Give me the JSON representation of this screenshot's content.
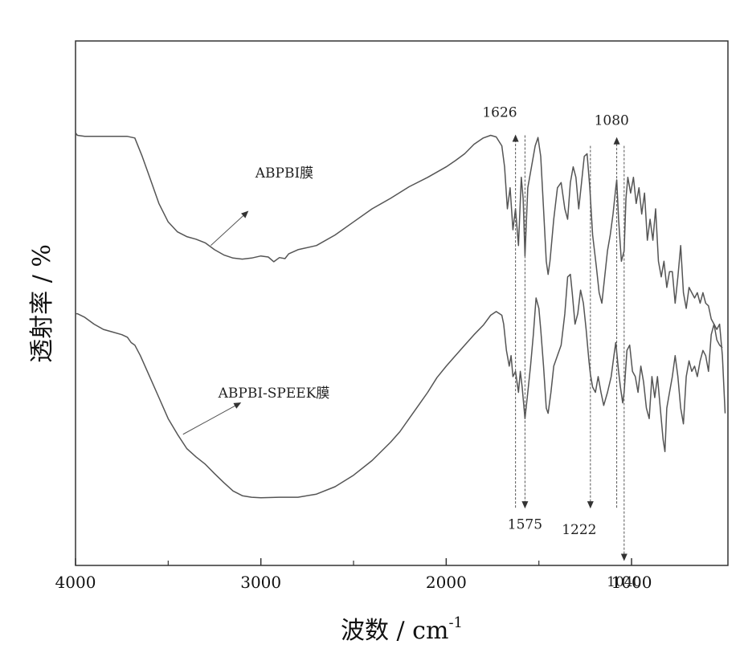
{
  "chart_data": {
    "type": "line",
    "xlabel": "波数 / cm",
    "xlabel_sup": "-1",
    "ylabel": "透射率 / %",
    "xlim": [
      4000,
      480
    ],
    "x_reversed": true,
    "ylim": [
      0,
      100
    ],
    "y_ticks_shown": false,
    "grid": false,
    "x_ticks": [
      {
        "value": 4000,
        "label": "4000"
      },
      {
        "value": 3000,
        "label": "3000"
      },
      {
        "value": 2000,
        "label": "2000"
      },
      {
        "value": 1000,
        "label": "1000"
      }
    ],
    "x_minor_ticks": [
      3500,
      2500,
      1500
    ],
    "series": [
      {
        "name": "ABPBI膜",
        "color": "#555555",
        "points": [
          [
            4000,
            82.5
          ],
          [
            3990,
            82
          ],
          [
            3950,
            81.8
          ],
          [
            3900,
            81.8
          ],
          [
            3800,
            81.8
          ],
          [
            3720,
            81.8
          ],
          [
            3680,
            81.5
          ],
          [
            3640,
            78
          ],
          [
            3600,
            74
          ],
          [
            3550,
            69
          ],
          [
            3500,
            65.5
          ],
          [
            3450,
            63.6
          ],
          [
            3400,
            62.7
          ],
          [
            3350,
            62.2
          ],
          [
            3300,
            61.5
          ],
          [
            3250,
            60.2
          ],
          [
            3200,
            59.2
          ],
          [
            3150,
            58.6
          ],
          [
            3100,
            58.4
          ],
          [
            3050,
            58.6
          ],
          [
            3000,
            59
          ],
          [
            2960,
            58.8
          ],
          [
            2930,
            57.9
          ],
          [
            2900,
            58.7
          ],
          [
            2870,
            58.5
          ],
          [
            2850,
            59.4
          ],
          [
            2800,
            60.2
          ],
          [
            2700,
            61
          ],
          [
            2600,
            63
          ],
          [
            2500,
            65.5
          ],
          [
            2400,
            68
          ],
          [
            2300,
            70
          ],
          [
            2200,
            72.2
          ],
          [
            2100,
            74
          ],
          [
            2000,
            76
          ],
          [
            1950,
            77.2
          ],
          [
            1900,
            78.5
          ],
          [
            1850,
            80.3
          ],
          [
            1800,
            81.5
          ],
          [
            1760,
            82
          ],
          [
            1730,
            81.7
          ],
          [
            1700,
            80
          ],
          [
            1685,
            76
          ],
          [
            1670,
            68
          ],
          [
            1655,
            72
          ],
          [
            1640,
            64
          ],
          [
            1626,
            68
          ],
          [
            1610,
            61
          ],
          [
            1595,
            74
          ],
          [
            1585,
            70
          ],
          [
            1575,
            59
          ],
          [
            1560,
            72
          ],
          [
            1540,
            76
          ],
          [
            1520,
            80
          ],
          [
            1505,
            81.6
          ],
          [
            1490,
            78
          ],
          [
            1475,
            68
          ],
          [
            1460,
            58
          ],
          [
            1450,
            55.5
          ],
          [
            1440,
            58
          ],
          [
            1420,
            66
          ],
          [
            1400,
            72
          ],
          [
            1380,
            73
          ],
          [
            1360,
            68
          ],
          [
            1345,
            66
          ],
          [
            1330,
            73
          ],
          [
            1315,
            76
          ],
          [
            1300,
            74
          ],
          [
            1285,
            68
          ],
          [
            1270,
            73
          ],
          [
            1255,
            78
          ],
          [
            1240,
            78.5
          ],
          [
            1225,
            72
          ],
          [
            1210,
            63
          ],
          [
            1190,
            57
          ],
          [
            1175,
            52
          ],
          [
            1160,
            50
          ],
          [
            1145,
            55
          ],
          [
            1130,
            60
          ],
          [
            1115,
            63
          ],
          [
            1100,
            67
          ],
          [
            1085,
            72
          ],
          [
            1080,
            73.5
          ],
          [
            1070,
            66
          ],
          [
            1055,
            58
          ],
          [
            1040,
            60
          ],
          [
            1030,
            70
          ],
          [
            1020,
            74
          ],
          [
            1005,
            71
          ],
          [
            990,
            74
          ],
          [
            975,
            69
          ],
          [
            960,
            72
          ],
          [
            945,
            67
          ],
          [
            930,
            71
          ],
          [
            915,
            62
          ],
          [
            900,
            66
          ],
          [
            885,
            62
          ],
          [
            870,
            68
          ],
          [
            855,
            58
          ],
          [
            840,
            55
          ],
          [
            825,
            58
          ],
          [
            810,
            53
          ],
          [
            795,
            56
          ],
          [
            780,
            56
          ],
          [
            765,
            50
          ],
          [
            750,
            55
          ],
          [
            735,
            61
          ],
          [
            720,
            52
          ],
          [
            705,
            49
          ],
          [
            690,
            53
          ],
          [
            675,
            52
          ],
          [
            660,
            51
          ],
          [
            645,
            52
          ],
          [
            630,
            50
          ],
          [
            615,
            52
          ],
          [
            600,
            50
          ],
          [
            585,
            49.5
          ],
          [
            570,
            47
          ],
          [
            555,
            46
          ],
          [
            540,
            43
          ],
          [
            525,
            42
          ],
          [
            510,
            41.5
          ]
        ]
      },
      {
        "name": "ABPBI-SPEEK膜",
        "color": "#555555",
        "points": [
          [
            4000,
            48
          ],
          [
            3990,
            48
          ],
          [
            3950,
            47.3
          ],
          [
            3900,
            46
          ],
          [
            3850,
            45
          ],
          [
            3800,
            44.5
          ],
          [
            3750,
            44
          ],
          [
            3720,
            43.5
          ],
          [
            3700,
            42.5
          ],
          [
            3680,
            42
          ],
          [
            3650,
            40
          ],
          [
            3600,
            36
          ],
          [
            3550,
            32
          ],
          [
            3500,
            28
          ],
          [
            3450,
            25
          ],
          [
            3400,
            22.3
          ],
          [
            3350,
            20.7
          ],
          [
            3300,
            19.3
          ],
          [
            3250,
            17.5
          ],
          [
            3200,
            15.8
          ],
          [
            3150,
            14.2
          ],
          [
            3100,
            13.3
          ],
          [
            3050,
            13
          ],
          [
            3000,
            12.9
          ],
          [
            2900,
            13
          ],
          [
            2800,
            13
          ],
          [
            2700,
            13.6
          ],
          [
            2600,
            15
          ],
          [
            2500,
            17.2
          ],
          [
            2400,
            20
          ],
          [
            2300,
            23.5
          ],
          [
            2250,
            25.5
          ],
          [
            2200,
            28
          ],
          [
            2150,
            30.5
          ],
          [
            2100,
            33
          ],
          [
            2050,
            35.8
          ],
          [
            2000,
            38
          ],
          [
            1950,
            40
          ],
          [
            1900,
            42
          ],
          [
            1850,
            44
          ],
          [
            1800,
            45.8
          ],
          [
            1760,
            47.7
          ],
          [
            1730,
            48.4
          ],
          [
            1700,
            47.7
          ],
          [
            1690,
            46
          ],
          [
            1675,
            41
          ],
          [
            1660,
            38
          ],
          [
            1650,
            40
          ],
          [
            1640,
            36
          ],
          [
            1626,
            37
          ],
          [
            1610,
            33
          ],
          [
            1600,
            37
          ],
          [
            1590,
            34
          ],
          [
            1575,
            28
          ],
          [
            1560,
            33
          ],
          [
            1545,
            38
          ],
          [
            1530,
            44
          ],
          [
            1515,
            51
          ],
          [
            1500,
            49
          ],
          [
            1490,
            45
          ],
          [
            1475,
            38
          ],
          [
            1460,
            30
          ],
          [
            1450,
            29
          ],
          [
            1435,
            33
          ],
          [
            1420,
            38
          ],
          [
            1400,
            40
          ],
          [
            1380,
            42
          ],
          [
            1360,
            48
          ],
          [
            1345,
            55
          ],
          [
            1330,
            55.5
          ],
          [
            1320,
            52
          ],
          [
            1305,
            46
          ],
          [
            1290,
            48
          ],
          [
            1275,
            52.5
          ],
          [
            1260,
            50
          ],
          [
            1245,
            45
          ],
          [
            1230,
            39
          ],
          [
            1222,
            36.5
          ],
          [
            1210,
            34
          ],
          [
            1195,
            33
          ],
          [
            1180,
            36
          ],
          [
            1165,
            33
          ],
          [
            1150,
            30.5
          ],
          [
            1130,
            33
          ],
          [
            1110,
            36
          ],
          [
            1095,
            40
          ],
          [
            1085,
            42.5
          ],
          [
            1070,
            37
          ],
          [
            1060,
            34
          ],
          [
            1048,
            31
          ],
          [
            1040,
            33
          ],
          [
            1025,
            41
          ],
          [
            1010,
            42
          ],
          [
            995,
            37
          ],
          [
            980,
            36
          ],
          [
            965,
            33
          ],
          [
            950,
            38
          ],
          [
            935,
            35
          ],
          [
            920,
            30
          ],
          [
            905,
            28
          ],
          [
            890,
            36
          ],
          [
            875,
            32
          ],
          [
            860,
            36
          ],
          [
            845,
            30
          ],
          [
            830,
            24
          ],
          [
            820,
            21.7
          ],
          [
            810,
            30
          ],
          [
            795,
            33
          ],
          [
            780,
            36
          ],
          [
            765,
            40
          ],
          [
            750,
            36
          ],
          [
            735,
            30
          ],
          [
            720,
            27
          ],
          [
            705,
            36
          ],
          [
            690,
            39
          ],
          [
            675,
            37
          ],
          [
            660,
            38
          ],
          [
            645,
            36
          ],
          [
            630,
            39
          ],
          [
            615,
            41
          ],
          [
            600,
            40
          ],
          [
            585,
            37
          ],
          [
            570,
            44
          ],
          [
            555,
            46
          ],
          [
            540,
            45
          ],
          [
            525,
            46
          ],
          [
            510,
            40
          ],
          [
            495,
            29
          ]
        ]
      }
    ],
    "series_labels": [
      {
        "text": "ABPBI膜",
        "x": 3030,
        "y": 74,
        "arrow_from": [
          3270,
          61
        ],
        "arrow_to": [
          3070,
          67.5
        ]
      },
      {
        "text": "ABPBI-SPEEK膜",
        "x": 3230,
        "y": 32,
        "arrow_from": [
          3420,
          25
        ],
        "arrow_to": [
          3110,
          31
        ]
      }
    ],
    "annotations": [
      {
        "label": "1626",
        "x": 1626,
        "line_from": 11,
        "line_to": 82,
        "arrow": "up",
        "label_y": 85.5,
        "label_anchor": "end",
        "label_dx": 2
      },
      {
        "label": "1575",
        "x": 1575,
        "line_from": 82,
        "line_to": 11,
        "arrow": "down",
        "label_y": 7,
        "label_anchor": "middle",
        "label_dx": 0
      },
      {
        "label": "1080",
        "x": 1080,
        "line_from": 11,
        "line_to": 81.5,
        "arrow": "up",
        "label_y": 84,
        "label_anchor": "start",
        "label_dx": -28
      },
      {
        "label": "1222",
        "x": 1222,
        "line_from": 80,
        "line_to": 11,
        "arrow": "down",
        "label_y": 6,
        "label_anchor": "middle",
        "label_dx": -14
      },
      {
        "label": "1040",
        "x": 1040,
        "line_from": 80,
        "line_to": 1,
        "arrow": "down",
        "label_y": -4,
        "label_anchor": "middle",
        "label_dx": 0
      }
    ]
  }
}
